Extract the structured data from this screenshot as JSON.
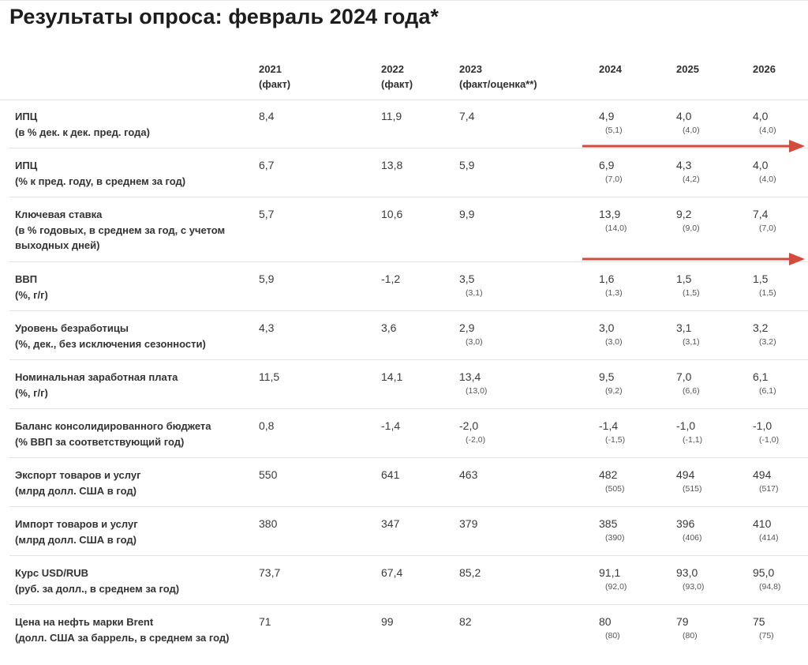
{
  "title": "Результаты опроса: февраль 2024 года*",
  "columns": [
    {
      "year": "2021",
      "note": "(факт)"
    },
    {
      "year": "2022",
      "note": "(факт)"
    },
    {
      "year": "2023",
      "note": "(факт/оценка**)"
    },
    {
      "year": "2024",
      "note": ""
    },
    {
      "year": "2025",
      "note": ""
    },
    {
      "year": "2026",
      "note": ""
    }
  ],
  "rows": [
    {
      "name": "ИПЦ",
      "unit": "(в % дек. к дек. пред. года)",
      "v2021": "8,4",
      "v2022": "11,9",
      "v2023": "7,4",
      "p2023": "",
      "v2024": "4,9",
      "p2024": "(5,1)",
      "v2025": "4,0",
      "p2025": "(4,0)",
      "v2026": "4,0",
      "p2026": "(4,0)"
    },
    {
      "name": "ИПЦ",
      "unit": "(% к пред. году, в среднем за год)",
      "v2021": "6,7",
      "v2022": "13,8",
      "v2023": "5,9",
      "p2023": "",
      "v2024": "6,9",
      "p2024": "(7,0)",
      "v2025": "4,3",
      "p2025": "(4,2)",
      "v2026": "4,0",
      "p2026": "(4,0)"
    },
    {
      "name": "Ключевая ставка",
      "unit": "(в % годовых, в среднем за год, с учетом выходных дней)",
      "v2021": "5,7",
      "v2022": "10,6",
      "v2023": "9,9",
      "p2023": "",
      "v2024": "13,9",
      "p2024": "(14,0)",
      "v2025": "9,2",
      "p2025": "(9,0)",
      "v2026": "7,4",
      "p2026": "(7,0)"
    },
    {
      "name": "ВВП",
      "unit": "(%, г/г)",
      "v2021": "5,9",
      "v2022": "-1,2",
      "v2023": "3,5",
      "p2023": "(3,1)",
      "v2024": "1,6",
      "p2024": "(1,3)",
      "v2025": "1,5",
      "p2025": "(1,5)",
      "v2026": "1,5",
      "p2026": "(1,5)"
    },
    {
      "name": "Уровень безработицы",
      "unit": "(%, дек., без исключения сезонности)",
      "v2021": "4,3",
      "v2022": "3,6",
      "v2023": "2,9",
      "p2023": "(3,0)",
      "v2024": "3,0",
      "p2024": "(3,0)",
      "v2025": "3,1",
      "p2025": "(3,1)",
      "v2026": "3,2",
      "p2026": "(3,2)"
    },
    {
      "name": "Номинальная заработная плата",
      "unit": "(%, г/г)",
      "v2021": "11,5",
      "v2022": "14,1",
      "v2023": "13,4",
      "p2023": "(13,0)",
      "v2024": "9,5",
      "p2024": "(9,2)",
      "v2025": "7,0",
      "p2025": "(6,6)",
      "v2026": "6,1",
      "p2026": "(6,1)"
    },
    {
      "name": "Баланс консолидированного бюджета",
      "unit": "(% ВВП за соответствующий год)",
      "v2021": "0,8",
      "v2022": "-1,4",
      "v2023": "-2,0",
      "p2023": "(-2,0)",
      "v2024": "-1,4",
      "p2024": "(-1,5)",
      "v2025": "-1,0",
      "p2025": "(-1,1)",
      "v2026": "-1,0",
      "p2026": "(-1,0)"
    },
    {
      "name": "Экспорт товаров и услуг",
      "unit": "(млрд долл. США в год)",
      "v2021": "550",
      "v2022": "641",
      "v2023": "463",
      "p2023": "",
      "v2024": "482",
      "p2024": "(505)",
      "v2025": "494",
      "p2025": "(515)",
      "v2026": "494",
      "p2026": "(517)"
    },
    {
      "name": "Импорт товаров и услуг",
      "unit": "(млрд долл. США в год)",
      "v2021": "380",
      "v2022": "347",
      "v2023": "379",
      "p2023": "",
      "v2024": "385",
      "p2024": "(390)",
      "v2025": "396",
      "p2025": "(406)",
      "v2026": "410",
      "p2026": "(414)"
    },
    {
      "name": "Курс USD/RUB",
      "unit": "(руб. за долл., в среднем за год)",
      "v2021": "73,7",
      "v2022": "67,4",
      "v2023": "85,2",
      "p2023": "",
      "v2024": "91,1",
      "p2024": "(92,0)",
      "v2025": "93,0",
      "p2025": "(93,0)",
      "v2026": "95,0",
      "p2026": "(94,8)"
    },
    {
      "name": "Цена на нефть марки Brent",
      "unit": "(долл. США за баррель, в среднем за год)",
      "v2021": "71",
      "v2022": "99",
      "v2023": "82",
      "p2023": "",
      "v2024": "80",
      "p2024": "(80)",
      "v2025": "79",
      "p2025": "(80)",
      "v2026": "75",
      "p2026": "(75)"
    }
  ],
  "colors": {
    "arrow": "#d24b3c",
    "divider": "#e4e4e4",
    "text": "#333333"
  },
  "icons": [
    "arrow-right-icon",
    "arrow-right-icon"
  ]
}
